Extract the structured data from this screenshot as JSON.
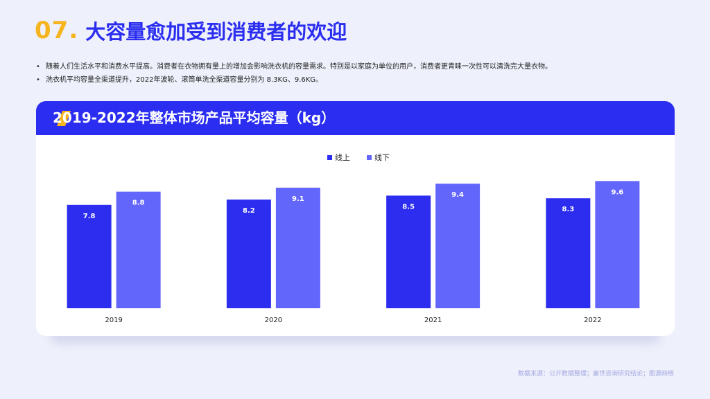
{
  "header": {
    "number": "07.",
    "title": "大容量愈加受到消费者的欢迎"
  },
  "bullets": [
    "随着人们生活水平和消费水平提高。消费者在衣物拥有量上的增加会影响洗衣机的容量需求。特别是以家庭为单位的用户，消费者更青睐一次性可以清洗完大量衣物。",
    "洗衣机平均容量全渠道提升，2022年波轮、滚筒单洗全渠道容量分别为 8.3KG、9.6KG。"
  ],
  "colors": {
    "accent_blue": "#2b2ef0",
    "accent_yellow": "#f6b51e",
    "series_online": "#2d2df0",
    "series_offline": "#6366fa",
    "background": "#eef0fb"
  },
  "source": "数据来源：公开数据整理；嘉世咨询研究结论；图源网络",
  "chart_data": {
    "type": "bar",
    "title": "2019-2022年整体市场产品平均容量（kg）",
    "categories": [
      "2019",
      "2020",
      "2021",
      "2022"
    ],
    "series": [
      {
        "name": "线上",
        "values": [
          7.8,
          8.2,
          8.5,
          8.3
        ]
      },
      {
        "name": "线下",
        "values": [
          8.8,
          9.1,
          9.4,
          9.6
        ]
      }
    ],
    "xlabel": "",
    "ylabel": "",
    "ylim": [
      0,
      11.5
    ],
    "grid": false,
    "legend": "top-center",
    "data_labels": true
  }
}
